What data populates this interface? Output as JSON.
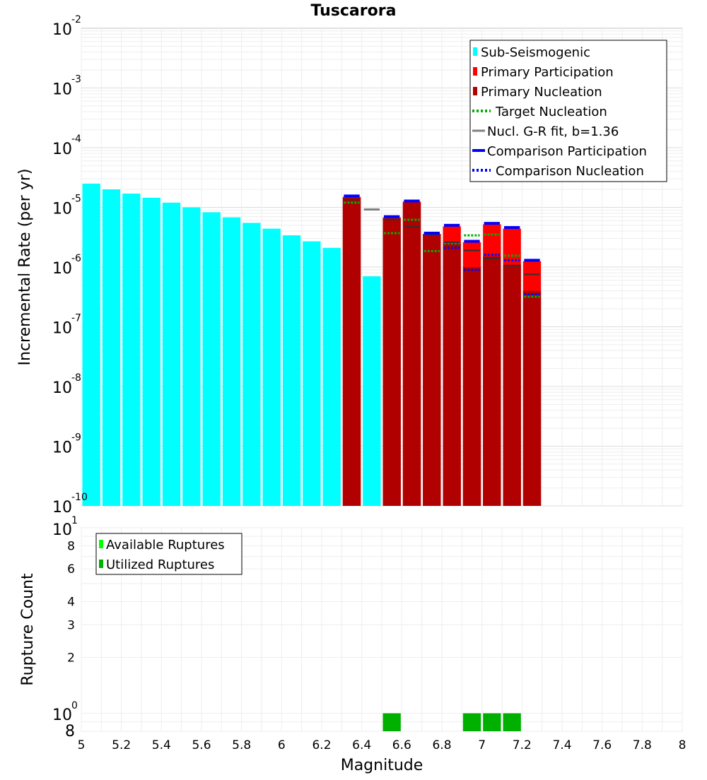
{
  "chart_data": [
    {
      "type": "bar",
      "title": "Tuscarora",
      "xlabel": "",
      "ylabel": "Incremental Rate (per yr)",
      "yscale": "log",
      "xlim": [
        5,
        8
      ],
      "ylim": [
        1e-10,
        0.01
      ],
      "y_tick_exponents": [
        -10,
        -9,
        -8,
        -7,
        -6,
        -5,
        -4,
        -3,
        -2
      ],
      "legend_position": "top-right",
      "legend": [
        {
          "label": "Sub-Seismogenic",
          "color": "#00ffff",
          "style": "box"
        },
        {
          "label": "Primary Participation",
          "color": "#ff0000",
          "style": "box"
        },
        {
          "label": "Primary Nucleation",
          "color": "#b00000",
          "style": "box"
        },
        {
          "label": "Target Nucleation",
          "color": "#00b000",
          "style": "dotted"
        },
        {
          "label": "Nucl. G-R fit, b=1.36",
          "color": "#808080",
          "style": "solid"
        },
        {
          "label": "Comparison Participation",
          "color": "#0000ff",
          "style": "solid-thick"
        },
        {
          "label": "Comparison Nucleation",
          "color": "#0000ff",
          "style": "dotted"
        }
      ],
      "series": [
        {
          "name": "Sub-Seismogenic",
          "color": "#00ffff",
          "x": [
            5.05,
            5.15,
            5.25,
            5.35,
            5.45,
            5.55,
            5.65,
            5.75,
            5.85,
            5.95,
            6.05,
            6.15,
            6.25,
            6.45
          ],
          "values": [
            2.5e-05,
            2e-05,
            1.7e-05,
            1.45e-05,
            1.2e-05,
            1e-05,
            8.3e-06,
            6.8e-06,
            5.5e-06,
            4.4e-06,
            3.4e-06,
            2.7e-06,
            2.1e-06,
            7e-07
          ]
        },
        {
          "name": "Primary Participation",
          "color": "#ff0000",
          "x": [
            6.35,
            6.55,
            6.65,
            6.75,
            6.85,
            6.95,
            7.05,
            7.15,
            7.25
          ],
          "values": [
            1.5e-05,
            6.8e-06,
            1.25e-05,
            3.6e-06,
            4.8e-06,
            2.6e-06,
            5.2e-06,
            4.4e-06,
            1.25e-06
          ]
        },
        {
          "name": "Primary Nucleation",
          "color": "#b00000",
          "x": [
            6.35,
            6.55,
            6.65,
            6.75,
            6.85,
            6.95,
            7.05,
            7.15,
            7.25
          ],
          "values": [
            1.45e-05,
            6.5e-06,
            1.2e-05,
            3.5e-06,
            2.5e-06,
            1e-06,
            1.5e-06,
            1.1e-06,
            4e-07
          ]
        },
        {
          "name": "Target Nucleation",
          "color": "#00b000",
          "x": [
            6.35,
            6.55,
            6.65,
            6.75,
            6.85,
            6.95,
            7.05,
            7.15,
            7.25
          ],
          "values": [
            1.2e-05,
            3.7e-06,
            6.2e-06,
            1.85e-06,
            2.5e-06,
            3.4e-06,
            3.5e-06,
            1.55e-06,
            3.2e-07
          ]
        },
        {
          "name": "Nucl. G-R fit, b=1.36",
          "color": "#808080",
          "x": [
            6.45
          ],
          "values": [
            9.2e-06
          ]
        },
        {
          "name": "Nucl. G-R fit, b=1.36 (dark)",
          "color": "#303030",
          "x": [
            6.35,
            6.55,
            6.65,
            6.75,
            6.85,
            6.95,
            7.05,
            7.15,
            7.25
          ],
          "values": [
            1.35e-05,
            6.3e-06,
            4.7e-06,
            3.5e-06,
            2.6e-06,
            1.9e-06,
            1.4e-06,
            1.05e-06,
            7.5e-07
          ]
        },
        {
          "name": "Comparison Participation",
          "color": "#0000ff",
          "x": [
            6.35,
            6.55,
            6.65,
            6.75,
            6.85,
            6.95,
            7.05,
            7.15,
            7.25
          ],
          "values": [
            1.55e-05,
            7e-06,
            1.28e-05,
            3.7e-06,
            5e-06,
            2.7e-06,
            5.4e-06,
            4.6e-06,
            1.3e-06
          ]
        },
        {
          "name": "Comparison Nucleation",
          "color": "#0000ff",
          "x": [
            6.85,
            6.95,
            7.05,
            7.15,
            7.25
          ],
          "values": [
            2.1e-06,
            9e-07,
            1.6e-06,
            1.3e-06,
            3.5e-07
          ]
        }
      ]
    },
    {
      "type": "bar",
      "title": "",
      "xlabel": "Magnitude",
      "ylabel": "Rupture Count",
      "yscale": "log",
      "xlim": [
        5,
        8
      ],
      "ylim": [
        0.8,
        10
      ],
      "x_ticks": [
        "5",
        "5.2",
        "5.4",
        "5.6",
        "5.8",
        "6",
        "6.2",
        "6.4",
        "6.6",
        "6.8",
        "7",
        "7.2",
        "7.4",
        "7.6",
        "7.8",
        "8"
      ],
      "y_minor_tick_labels": [
        {
          "value": 2,
          "label": "2"
        },
        {
          "value": 3,
          "label": "3"
        },
        {
          "value": 4,
          "label": "4"
        },
        {
          "value": 6,
          "label": "6"
        },
        {
          "value": 8,
          "label": "8"
        }
      ],
      "y_extra_labels": {
        "top_exponent": "1",
        "bottom_exponent": "0",
        "base": "10",
        "bottom": "8"
      },
      "legend_position": "top-left",
      "legend": [
        {
          "label": "Available Ruptures",
          "color": "#00ff00",
          "style": "box"
        },
        {
          "label": "Utilized Ruptures",
          "color": "#00b000",
          "style": "box"
        }
      ],
      "series": [
        {
          "name": "Available Ruptures",
          "color": "#00ff00",
          "x": [],
          "values": []
        },
        {
          "name": "Utilized Ruptures",
          "color": "#00b000",
          "x": [
            6.55,
            6.95,
            7.05,
            7.15
          ],
          "values": [
            1,
            1,
            1,
            1
          ]
        }
      ]
    }
  ]
}
